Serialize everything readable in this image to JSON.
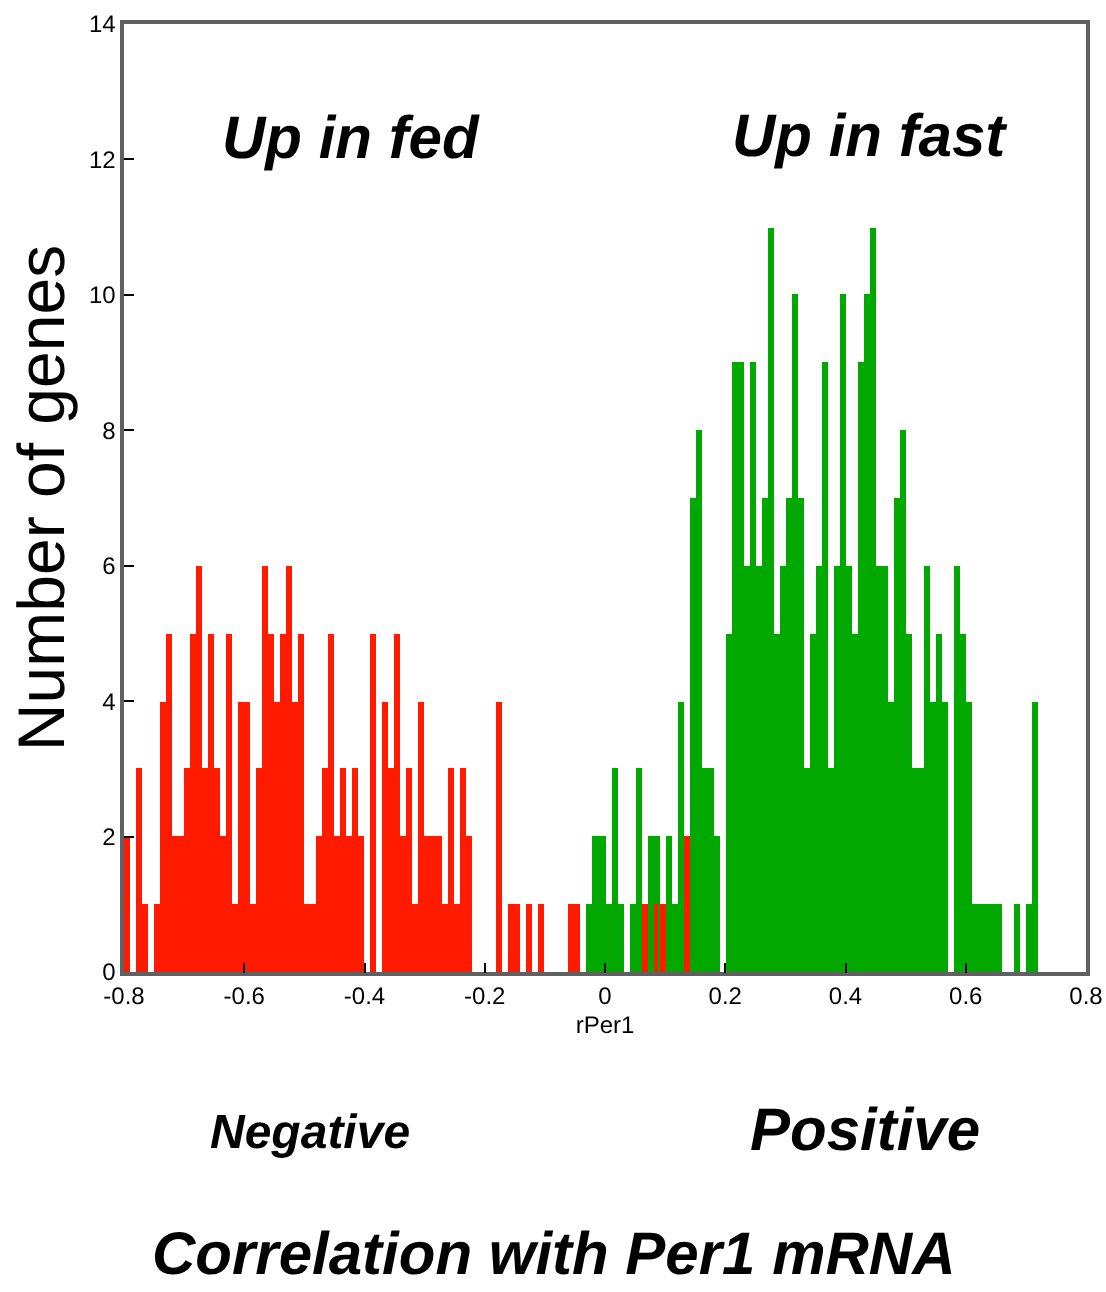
{
  "chart_data": {
    "type": "histogram",
    "xlabel": "rPer1",
    "ylabel": "Number of genes",
    "annotations": [
      "Up in fed",
      "Up in fast",
      "Negative",
      "Positive",
      "Correlation with Per1 mRNA"
    ],
    "xlim": [
      -0.8,
      0.8
    ],
    "xticks": [
      -0.8,
      -0.6,
      -0.4,
      -0.2,
      0,
      0.2,
      0.4,
      0.6,
      0.8
    ],
    "ylim": [
      0,
      14
    ],
    "yticks": [
      0,
      2,
      4,
      6,
      8,
      10,
      12,
      14
    ],
    "bins": [
      -0.8,
      -0.79,
      -0.78,
      -0.77,
      -0.76,
      -0.75,
      -0.74,
      -0.73,
      -0.72,
      -0.71,
      -0.7,
      -0.69,
      -0.68,
      -0.67,
      -0.66,
      -0.65,
      -0.64,
      -0.63,
      -0.62,
      -0.61,
      -0.6,
      -0.59,
      -0.58,
      -0.57,
      -0.56,
      -0.55,
      -0.54,
      -0.53,
      -0.52,
      -0.51,
      -0.5,
      -0.49,
      -0.48,
      -0.47,
      -0.46,
      -0.45,
      -0.44,
      -0.43,
      -0.42,
      -0.41,
      -0.4,
      -0.39,
      -0.38,
      -0.37,
      -0.36,
      -0.35,
      -0.34,
      -0.33,
      -0.32,
      -0.31,
      -0.3,
      -0.29,
      -0.28,
      -0.27,
      -0.26,
      -0.25,
      -0.24,
      -0.23,
      -0.22,
      -0.21,
      -0.2,
      -0.19,
      -0.18,
      -0.17,
      -0.16,
      -0.15,
      -0.14,
      -0.13,
      -0.12,
      -0.11,
      -0.1,
      -0.09,
      -0.08,
      -0.07,
      -0.06,
      -0.05,
      -0.04,
      -0.03,
      -0.02,
      -0.01,
      0,
      0.01,
      0.02,
      0.03,
      0.04,
      0.05,
      0.06,
      0.07,
      0.08,
      0.09,
      0.1,
      0.11,
      0.12,
      0.13,
      0.14,
      0.15,
      0.16,
      0.17,
      0.18,
      0.19,
      0.2,
      0.21,
      0.22,
      0.23,
      0.24,
      0.25,
      0.26,
      0.27,
      0.28,
      0.29,
      0.3,
      0.31,
      0.32,
      0.33,
      0.34,
      0.35,
      0.36,
      0.37,
      0.38,
      0.39,
      0.4,
      0.41,
      0.42,
      0.43,
      0.44,
      0.45,
      0.46,
      0.47,
      0.48,
      0.49,
      0.5,
      0.51,
      0.52,
      0.53,
      0.54,
      0.55,
      0.56,
      0.57,
      0.58,
      0.59,
      0.6,
      0.61,
      0.62,
      0.63,
      0.64,
      0.65,
      0.66,
      0.67,
      0.68,
      0.69,
      0.7,
      0.71,
      0.72
    ],
    "series": [
      {
        "color": "#ff1a00",
        "values": [
          2,
          0,
          3,
          1,
          0,
          1,
          4,
          5,
          2,
          2,
          3,
          5,
          6,
          3,
          5,
          3,
          2,
          5,
          1,
          4,
          4,
          1,
          3,
          6,
          5,
          4,
          5,
          6,
          4,
          5,
          1,
          1,
          2,
          3,
          5,
          2,
          3,
          2,
          3,
          2,
          0,
          5,
          0,
          4,
          3,
          5,
          2,
          3,
          1,
          4,
          2,
          2,
          2,
          1,
          3,
          1,
          3,
          2,
          0,
          0,
          0,
          0,
          4,
          0,
          1,
          1,
          0,
          1,
          0,
          1,
          0,
          0,
          0,
          0,
          1,
          1,
          0,
          0,
          0,
          0,
          0,
          0,
          0,
          0,
          0,
          0,
          1,
          0,
          1,
          1,
          0,
          0,
          0,
          2,
          0,
          0,
          0,
          0,
          0,
          0,
          0,
          0,
          0,
          0,
          0,
          0,
          0,
          0,
          0,
          0,
          0,
          0,
          0,
          0,
          0,
          0,
          0,
          0,
          0,
          0,
          0,
          0,
          0,
          0,
          0,
          0,
          0,
          0,
          0,
          0,
          0,
          0,
          0,
          0,
          0,
          0,
          0,
          0,
          0,
          0,
          0,
          0,
          0,
          0,
          0,
          0,
          0,
          0,
          0,
          0,
          0,
          0
        ]
      },
      {
        "color": "#00a800",
        "values": [
          0,
          0,
          0,
          0,
          0,
          0,
          0,
          0,
          0,
          0,
          0,
          0,
          0,
          0,
          0,
          0,
          0,
          0,
          0,
          0,
          0,
          0,
          0,
          0,
          0,
          0,
          0,
          0,
          0,
          0,
          0,
          0,
          0,
          0,
          0,
          0,
          0,
          0,
          0,
          0,
          0,
          0,
          0,
          0,
          0,
          0,
          0,
          0,
          0,
          0,
          0,
          0,
          0,
          0,
          0,
          0,
          0,
          0,
          0,
          0,
          0,
          0,
          0,
          0,
          0,
          0,
          0,
          0,
          0,
          0,
          0,
          0,
          0,
          0,
          null,
          null,
          0,
          1,
          2,
          2,
          1,
          3,
          1,
          0,
          1,
          3,
          null,
          2,
          2,
          null,
          2,
          1,
          4,
          null,
          7,
          8,
          3,
          3,
          2,
          0,
          5,
          9,
          9,
          6,
          9,
          6,
          7,
          11,
          5,
          6,
          7,
          10,
          7,
          3,
          5,
          6,
          9,
          3,
          6,
          10,
          6,
          5,
          9,
          10,
          11,
          6,
          6,
          4,
          7,
          8,
          5,
          3,
          3,
          6,
          4,
          5,
          4,
          0,
          6,
          5,
          4,
          1,
          1,
          1,
          1,
          1,
          0,
          0,
          1,
          0,
          1,
          4
        ]
      }
    ]
  }
}
